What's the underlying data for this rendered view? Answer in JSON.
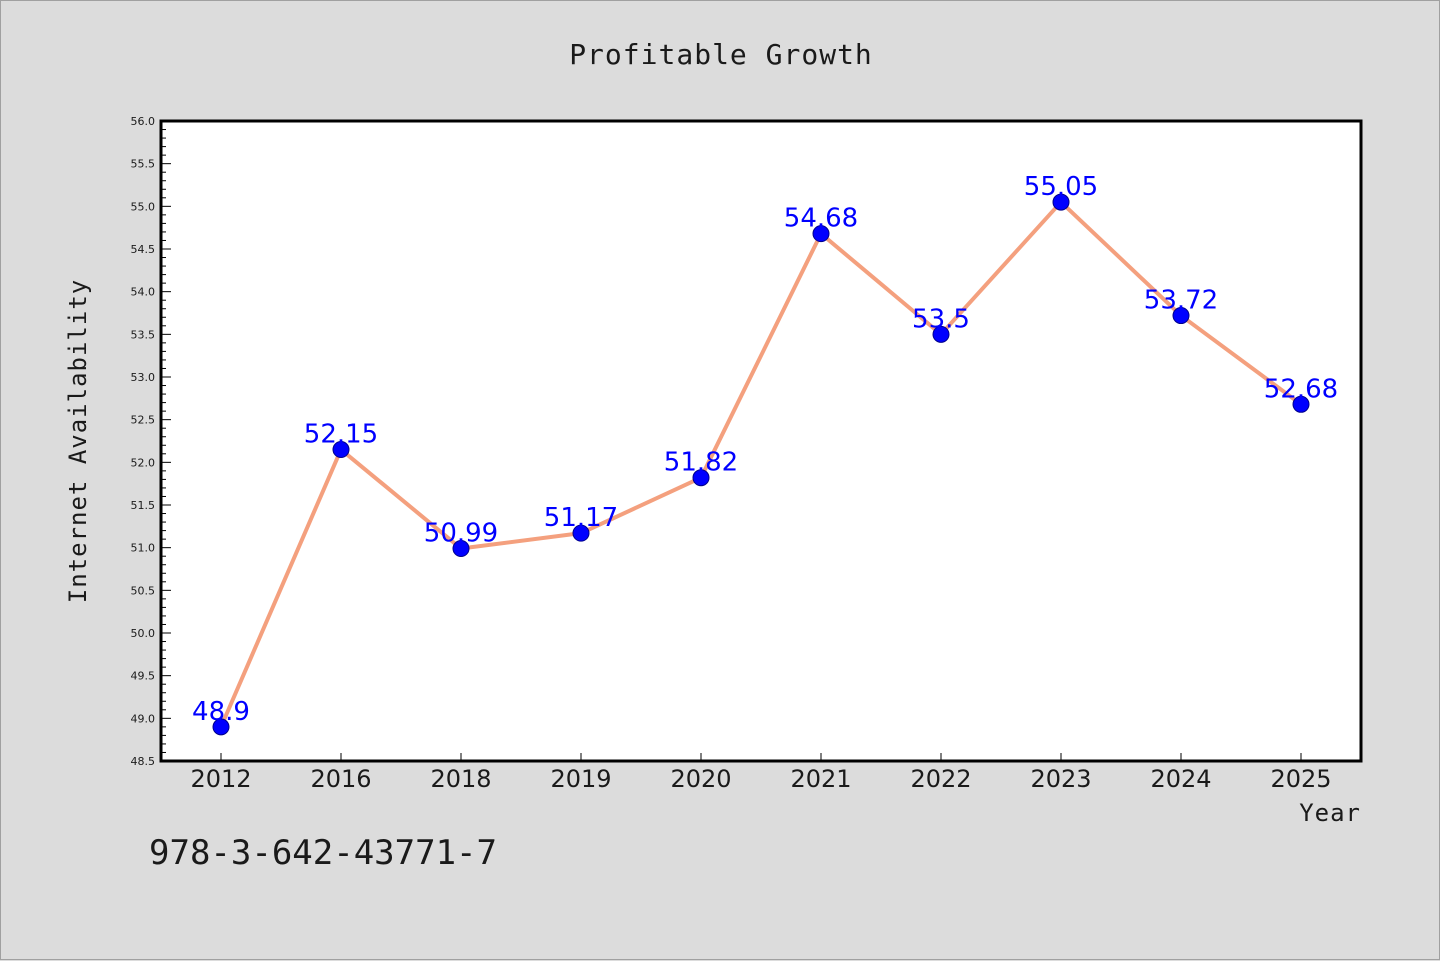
{
  "chart_data": {
    "type": "line",
    "title": "Profitable Growth",
    "xlabel": "Year",
    "ylabel": "Internet Availability",
    "categories": [
      "2012",
      "2016",
      "2018",
      "2019",
      "2020",
      "2021",
      "2022",
      "2023",
      "2024",
      "2025"
    ],
    "series": [
      {
        "values": [
          48.9,
          52.15,
          50.99,
          51.17,
          51.82,
          54.68,
          53.5,
          55.05,
          53.72,
          52.68
        ]
      }
    ],
    "data_labels": [
      "48.9",
      "52.15",
      "50.99",
      "51.17",
      "51.82",
      "54.68",
      "53.5",
      "55.05",
      "53.72",
      "52.68"
    ],
    "ylim": [
      48.5,
      56.0
    ],
    "yticks": [
      "48.5",
      "49.0",
      "49.5",
      "50.0",
      "50.5",
      "51.0",
      "51.5",
      "52.0",
      "52.5",
      "53.0",
      "53.5",
      "54.0",
      "54.5",
      "55.0",
      "55.5",
      "56.0"
    ],
    "grid": false,
    "colors": {
      "line": "#f4a07e",
      "marker": "#0000ff",
      "label": "#0000ff",
      "plot_bg": "#ffffff",
      "page_bg": "#dcdcdc"
    }
  },
  "footer": {
    "isbn": "978-3-642-43771-7"
  }
}
